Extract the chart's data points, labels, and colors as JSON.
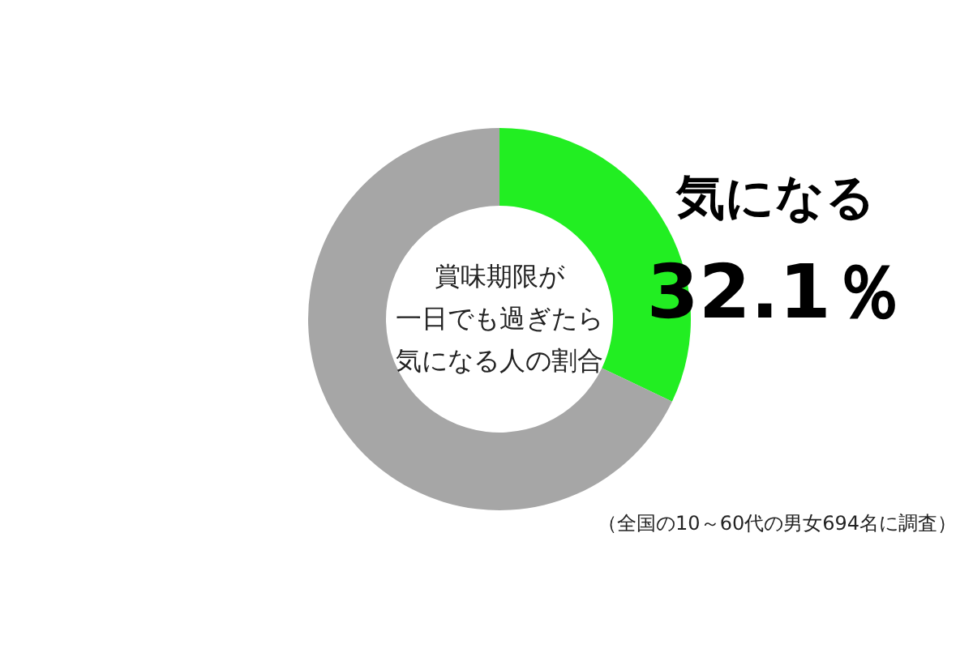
{
  "chart_data": {
    "type": "donut",
    "title": "賞味期限が",
    "subtitle": "一日でも過ぎたら気になる人の割合",
    "categories": [
      "気になる",
      null
    ],
    "values": [
      32.1,
      67.9
    ],
    "colors": [
      "#22ee22",
      "#a6a6a6"
    ],
    "value_labels": [
      "32.1％",
      null
    ],
    "annotations": [
      "（全国の10～60代の男女694名に調査）"
    ]
  }
}
